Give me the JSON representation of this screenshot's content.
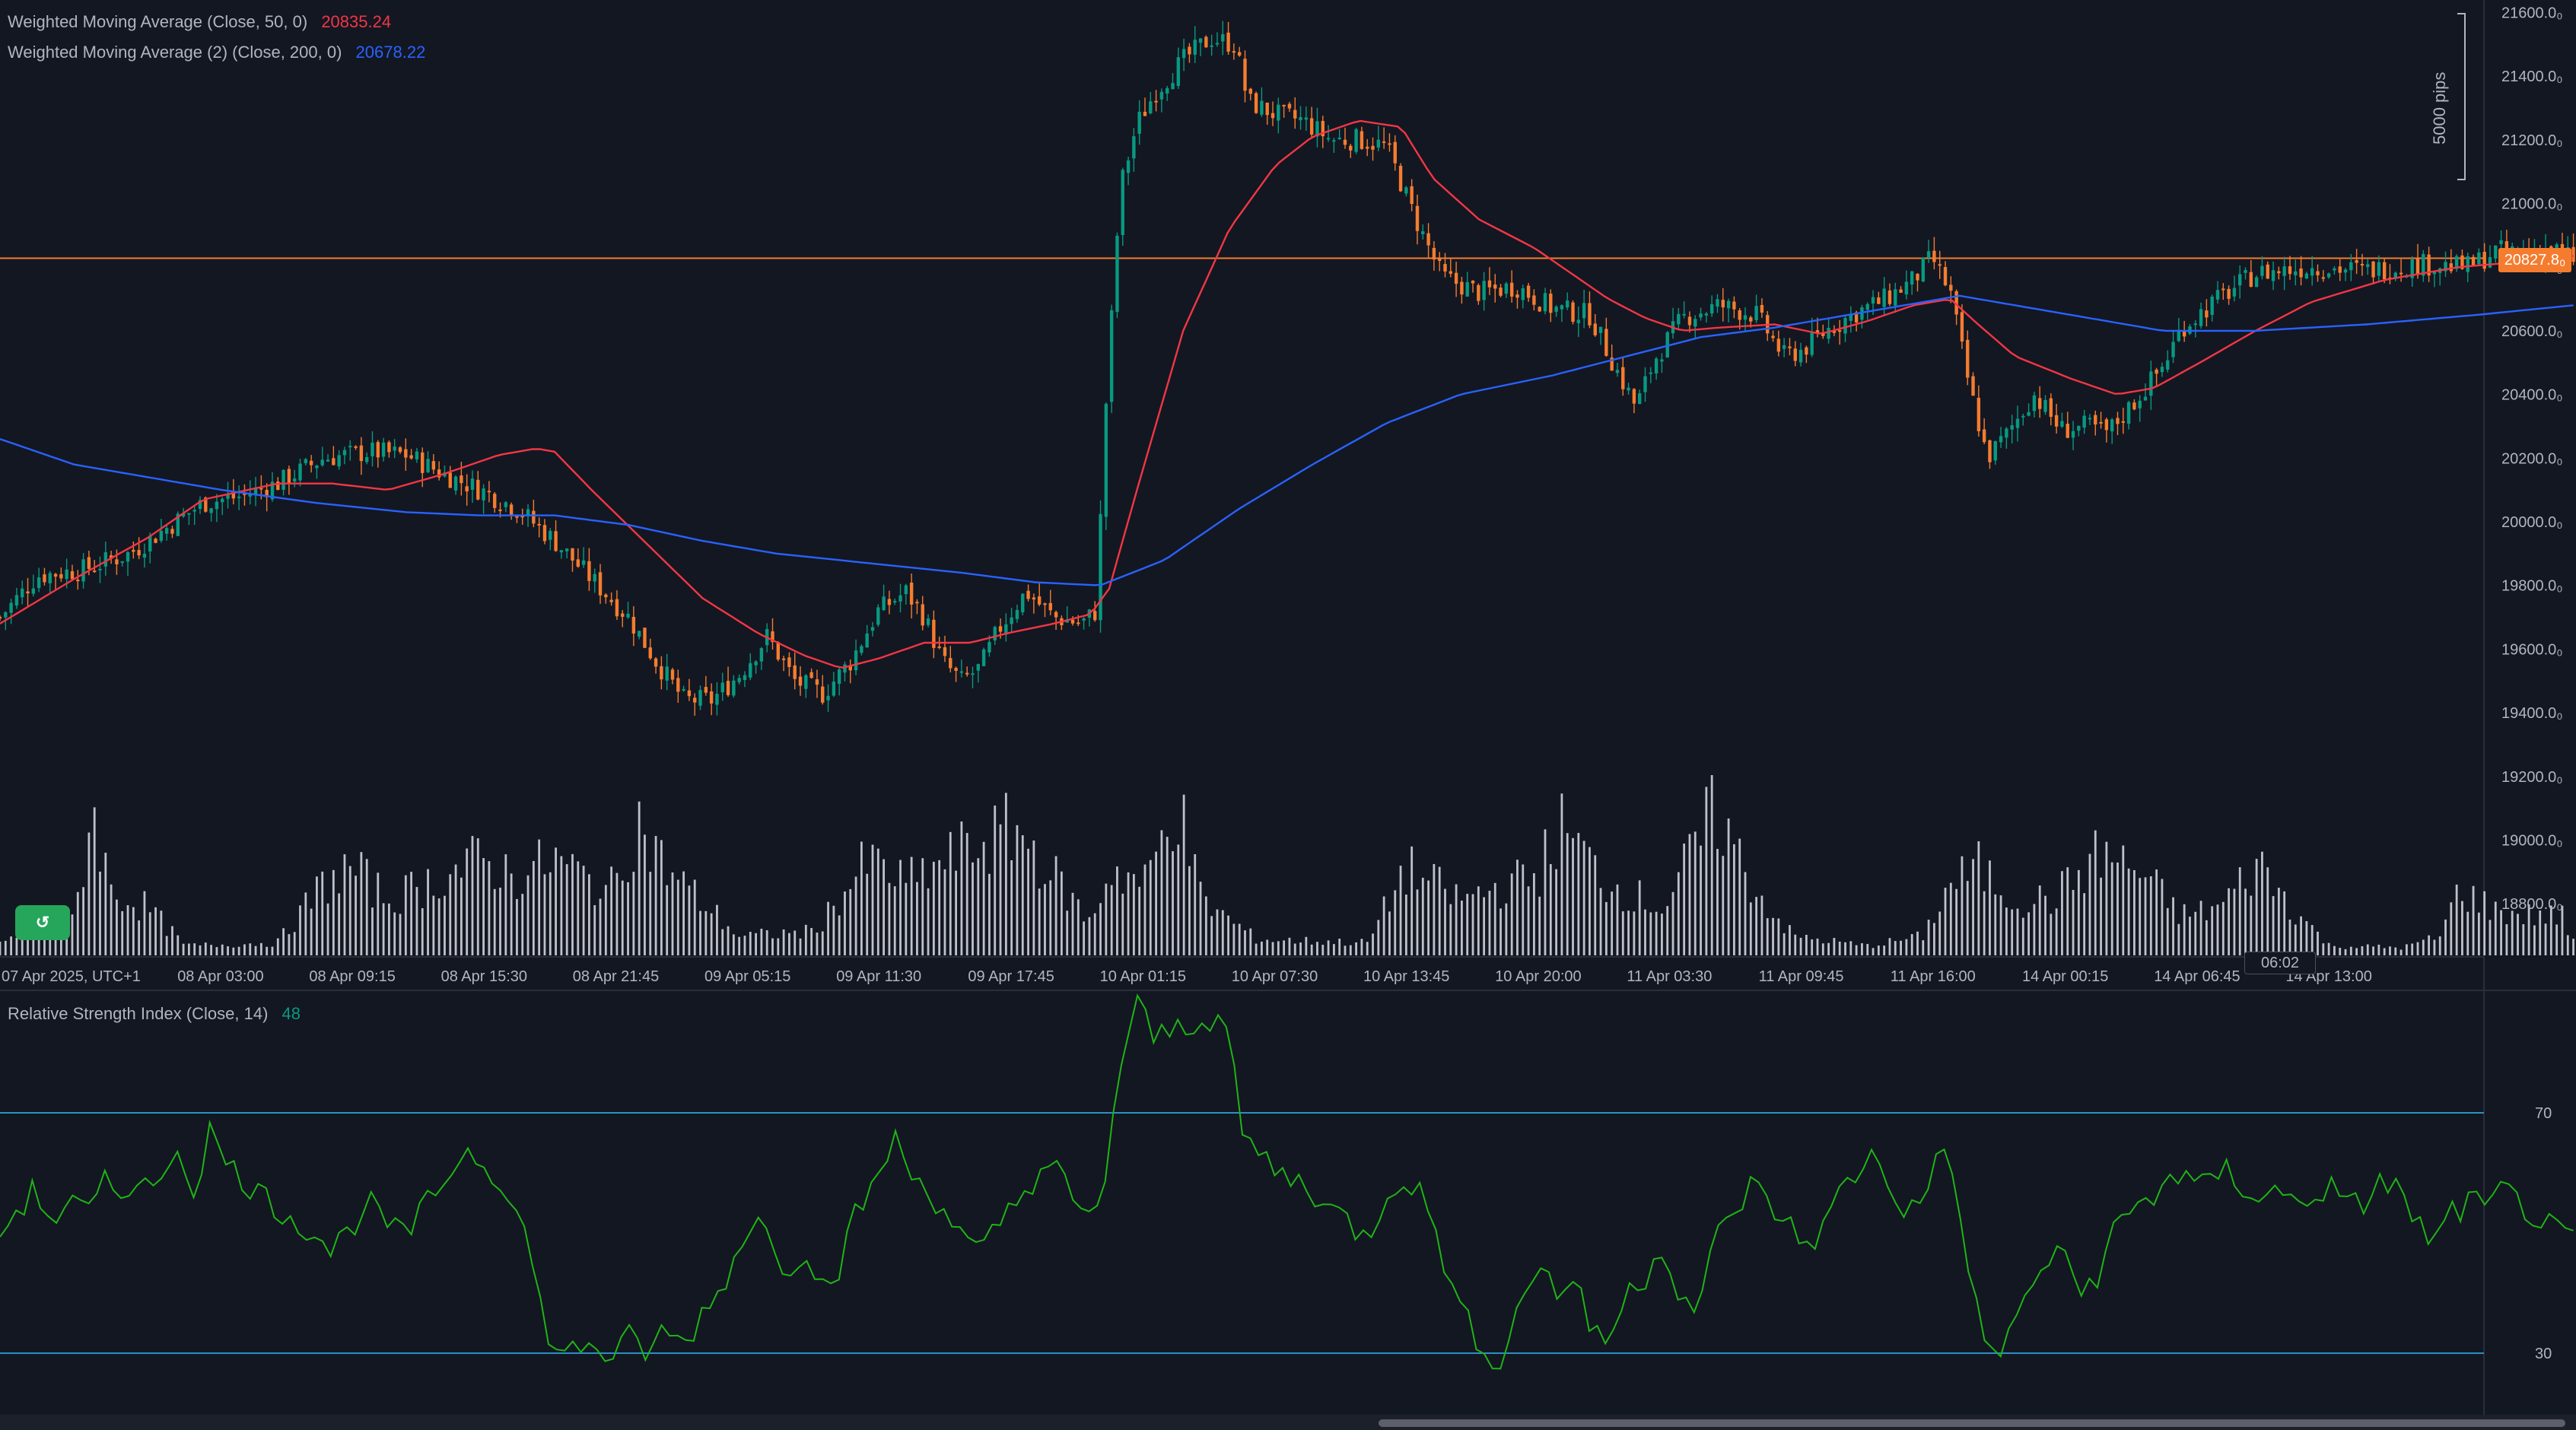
{
  "legend": {
    "wma50": {
      "label": "Weighted Moving Average (Close, 50, 0)",
      "value": "20835.24",
      "color": "#f23645"
    },
    "wma200": {
      "label": "Weighted Moving Average (2) (Close, 200, 0)",
      "value": "20678.22",
      "color": "#2962ff"
    },
    "rsi": {
      "label": "Relative Strength Index (Close, 14)",
      "value": "48",
      "color": "#089981"
    }
  },
  "price_badge": "20827.8₀",
  "countdown": "06:02",
  "range_measure": "5000 pips",
  "colors": {
    "background": "#131722",
    "up": "#089981",
    "down": "#f57c2f",
    "wma50": "#f23645",
    "wma200": "#2962ff",
    "rsi": "#1fb416",
    "rsi_band": "#2a8fc9",
    "price_line": "#f57c2f",
    "volume": "#d1d4dc"
  },
  "chart_data": [
    {
      "type": "candlestick",
      "title": "",
      "y_axis_ticks": [
        "21600.0₀",
        "21400.0₀",
        "21200.0₀",
        "21000.0₀",
        "20800.0₀",
        "20600.0₀",
        "20400.0₀",
        "20200.0₀",
        "20000.0₀",
        "19800.0₀",
        "19600.0₀",
        "19400.0₀",
        "19200.0₀",
        "19000.0₀",
        "18800.0₀"
      ],
      "y_tick_values": [
        21600,
        21400,
        21200,
        21000,
        20800,
        20600,
        20400,
        20200,
        20000,
        19800,
        19600,
        19400,
        19200,
        19000,
        18800
      ],
      "ylim": [
        18700,
        21620
      ],
      "x_axis_ticks": [
        "07 Apr 2025, UTC+1",
        "08 Apr 03:00",
        "08 Apr 09:15",
        "08 Apr 15:30",
        "08 Apr 21:45",
        "09 Apr 05:15",
        "09 Apr 11:30",
        "09 Apr 17:45",
        "10 Apr 01:15",
        "10 Apr 07:30",
        "10 Apr 13:45",
        "10 Apr 20:00",
        "11 Apr 03:30",
        "11 Apr 09:45",
        "11 Apr 16:00",
        "14 Apr 00:15",
        "14 Apr 06:45",
        "14 Apr 13:00"
      ],
      "current_price": 20827.8,
      "close_path": [
        [
          0,
          19700
        ],
        [
          20,
          19830
        ],
        [
          45,
          19850
        ],
        [
          70,
          19900
        ],
        [
          90,
          19980
        ],
        [
          110,
          20060
        ],
        [
          130,
          20080
        ],
        [
          150,
          20120
        ],
        [
          175,
          20200
        ],
        [
          200,
          20220
        ],
        [
          220,
          20210
        ],
        [
          240,
          20150
        ],
        [
          260,
          20100
        ],
        [
          280,
          20040
        ],
        [
          300,
          19940
        ],
        [
          320,
          19820
        ],
        [
          340,
          19700
        ],
        [
          355,
          19560
        ],
        [
          370,
          19440
        ],
        [
          385,
          19440
        ],
        [
          400,
          19520
        ],
        [
          415,
          19640
        ],
        [
          430,
          19500
        ],
        [
          445,
          19460
        ],
        [
          460,
          19560
        ],
        [
          475,
          19720
        ],
        [
          490,
          19780
        ],
        [
          500,
          19700
        ],
        [
          510,
          19560
        ],
        [
          520,
          19500
        ],
        [
          530,
          19540
        ],
        [
          540,
          19660
        ],
        [
          555,
          19780
        ],
        [
          570,
          19700
        ],
        [
          585,
          19680
        ],
        [
          593,
          19720
        ],
        [
          598,
          20350
        ],
        [
          606,
          21050
        ],
        [
          615,
          21250
        ],
        [
          625,
          21350
        ],
        [
          640,
          21450
        ],
        [
          655,
          21520
        ],
        [
          668,
          21500
        ],
        [
          675,
          21320
        ],
        [
          690,
          21280
        ],
        [
          705,
          21260
        ],
        [
          720,
          21200
        ],
        [
          735,
          21200
        ],
        [
          750,
          21180
        ],
        [
          765,
          20960
        ],
        [
          780,
          20770
        ],
        [
          800,
          20720
        ],
        [
          820,
          20740
        ],
        [
          840,
          20670
        ],
        [
          860,
          20650
        ],
        [
          875,
          20470
        ],
        [
          885,
          20360
        ],
        [
          895,
          20510
        ],
        [
          910,
          20640
        ],
        [
          930,
          20680
        ],
        [
          950,
          20650
        ],
        [
          965,
          20520
        ],
        [
          975,
          20540
        ],
        [
          990,
          20610
        ],
        [
          1005,
          20660
        ],
        [
          1020,
          20700
        ],
        [
          1035,
          20760
        ],
        [
          1045,
          20830
        ],
        [
          1055,
          20720
        ],
        [
          1065,
          20430
        ],
        [
          1075,
          20200
        ],
        [
          1085,
          20270
        ],
        [
          1100,
          20400
        ],
        [
          1115,
          20290
        ],
        [
          1130,
          20300
        ],
        [
          1140,
          20280
        ],
        [
          1155,
          20380
        ],
        [
          1170,
          20490
        ],
        [
          1180,
          20610
        ],
        [
          1200,
          20700
        ],
        [
          1220,
          20780
        ],
        [
          1250,
          20800
        ],
        [
          1280,
          20790
        ],
        [
          1310,
          20810
        ],
        [
          1335,
          20800
        ],
        [
          1350,
          20850
        ],
        [
          1365,
          20850
        ],
        [
          1380,
          20860
        ],
        [
          1392,
          20828
        ]
      ],
      "series": [
        {
          "name": "Weighted Moving Average (Close, 50, 0)",
          "last_value": 20835.24,
          "path": [
            [
              0,
              19680
            ],
            [
              40,
              19820
            ],
            [
              80,
              19950
            ],
            [
              110,
              20070
            ],
            [
              150,
              20120
            ],
            [
              180,
              20120
            ],
            [
              210,
              20100
            ],
            [
              240,
              20150
            ],
            [
              270,
              20210
            ],
            [
              290,
              20230
            ],
            [
              300,
              20220
            ],
            [
              320,
              20100
            ],
            [
              350,
              19930
            ],
            [
              380,
              19760
            ],
            [
              410,
              19650
            ],
            [
              435,
              19580
            ],
            [
              455,
              19540
            ],
            [
              475,
              19570
            ],
            [
              500,
              19620
            ],
            [
              525,
              19620
            ],
            [
              545,
              19650
            ],
            [
              570,
              19680
            ],
            [
              590,
              19710
            ],
            [
              600,
              19790
            ],
            [
              615,
              20100
            ],
            [
              640,
              20600
            ],
            [
              665,
              20920
            ],
            [
              690,
              21120
            ],
            [
              710,
              21210
            ],
            [
              735,
              21260
            ],
            [
              758,
              21240
            ],
            [
              775,
              21080
            ],
            [
              800,
              20950
            ],
            [
              830,
              20860
            ],
            [
              850,
              20780
            ],
            [
              870,
              20700
            ],
            [
              890,
              20640
            ],
            [
              910,
              20600
            ],
            [
              930,
              20610
            ],
            [
              960,
              20620
            ],
            [
              985,
              20590
            ],
            [
              1010,
              20630
            ],
            [
              1035,
              20680
            ],
            [
              1055,
              20700
            ],
            [
              1070,
              20620
            ],
            [
              1090,
              20520
            ],
            [
              1120,
              20450
            ],
            [
              1145,
              20400
            ],
            [
              1165,
              20420
            ],
            [
              1190,
              20500
            ],
            [
              1220,
              20600
            ],
            [
              1250,
              20690
            ],
            [
              1290,
              20760
            ],
            [
              1330,
              20800
            ],
            [
              1370,
              20820
            ],
            [
              1392,
              20835
            ]
          ]
        },
        {
          "name": "Weighted Moving Average (2) (Close, 200, 0)",
          "last_value": 20678.22,
          "path": [
            [
              0,
              20260
            ],
            [
              40,
              20180
            ],
            [
              80,
              20140
            ],
            [
              120,
              20100
            ],
            [
              170,
              20060
            ],
            [
              220,
              20030
            ],
            [
              260,
              20020
            ],
            [
              300,
              20020
            ],
            [
              340,
              19990
            ],
            [
              380,
              19940
            ],
            [
              420,
              19900
            ],
            [
              470,
              19870
            ],
            [
              520,
              19840
            ],
            [
              560,
              19810
            ],
            [
              595,
              19800
            ],
            [
              630,
              19880
            ],
            [
              670,
              20040
            ],
            [
              710,
              20180
            ],
            [
              750,
              20310
            ],
            [
              790,
              20400
            ],
            [
              840,
              20460
            ],
            [
              880,
              20520
            ],
            [
              920,
              20580
            ],
            [
              960,
              20610
            ],
            [
              1000,
              20650
            ],
            [
              1040,
              20690
            ],
            [
              1060,
              20710
            ],
            [
              1100,
              20670
            ],
            [
              1140,
              20630
            ],
            [
              1170,
              20600
            ],
            [
              1220,
              20600
            ],
            [
              1280,
              20620
            ],
            [
              1340,
              20650
            ],
            [
              1392,
              20680
            ]
          ]
        }
      ]
    },
    {
      "type": "bar",
      "title": "",
      "note": "volume histogram under price",
      "levels": [
        [
          0,
          0.08
        ],
        [
          40,
          0.22
        ],
        [
          50,
          0.95
        ],
        [
          60,
          0.4
        ],
        [
          80,
          0.3
        ],
        [
          100,
          0.06
        ],
        [
          150,
          0.08
        ],
        [
          175,
          0.45
        ],
        [
          190,
          0.55
        ],
        [
          210,
          0.35
        ],
        [
          260,
          0.6
        ],
        [
          280,
          0.5
        ],
        [
          300,
          0.6
        ],
        [
          330,
          0.4
        ],
        [
          345,
          0.85
        ],
        [
          360,
          0.55
        ],
        [
          400,
          0.12
        ],
        [
          440,
          0.15
        ],
        [
          470,
          0.6
        ],
        [
          490,
          0.45
        ],
        [
          520,
          0.65
        ],
        [
          550,
          0.8
        ],
        [
          570,
          0.5
        ],
        [
          590,
          0.2
        ],
        [
          600,
          0.55
        ],
        [
          620,
          0.45
        ],
        [
          636,
          1.0
        ],
        [
          650,
          0.35
        ],
        [
          680,
          0.1
        ],
        [
          740,
          0.08
        ],
        [
          760,
          0.55
        ],
        [
          790,
          0.35
        ],
        [
          830,
          0.5
        ],
        [
          845,
          0.8
        ],
        [
          870,
          0.45
        ],
        [
          900,
          0.3
        ],
        [
          928,
          0.92
        ],
        [
          950,
          0.4
        ],
        [
          970,
          0.12
        ],
        [
          1010,
          0.06
        ],
        [
          1040,
          0.12
        ],
        [
          1055,
          0.45
        ],
        [
          1070,
          0.55
        ],
        [
          1090,
          0.35
        ],
        [
          1110,
          0.35
        ],
        [
          1137,
          0.65
        ],
        [
          1160,
          0.5
        ],
        [
          1180,
          0.25
        ],
        [
          1200,
          0.3
        ],
        [
          1222,
          0.58
        ],
        [
          1240,
          0.3
        ],
        [
          1260,
          0.06
        ],
        [
          1300,
          0.05
        ],
        [
          1320,
          0.12
        ],
        [
          1330,
          0.42
        ],
        [
          1350,
          0.28
        ],
        [
          1370,
          0.25
        ],
        [
          1386,
          0.25
        ],
        [
          1392,
          0.08
        ]
      ]
    },
    {
      "type": "line",
      "title": "",
      "xlabel": "",
      "ylabel": "",
      "y_axis_ticks": [
        "70",
        "30"
      ],
      "y_tick_values": [
        70,
        30
      ],
      "ylim": [
        20,
        90
      ],
      "series": [
        {
          "name": "Relative Strength Index (Close, 14)",
          "last_value": 48,
          "values": [
            50,
            54,
            57,
            52,
            55,
            53,
            58,
            56,
            61,
            55,
            66,
            57,
            67,
            61,
            59,
            56,
            54,
            52,
            50,
            47,
            51,
            55,
            52,
            49,
            53,
            57,
            62,
            64,
            60,
            58,
            50,
            36,
            29,
            31,
            32,
            28,
            33,
            30,
            34,
            31,
            36,
            40,
            46,
            53,
            49,
            44,
            48,
            41,
            45,
            54,
            58,
            66,
            60,
            57,
            54,
            49,
            46,
            51,
            55,
            59,
            62,
            57,
            51,
            57,
            78,
            88,
            82,
            84,
            85,
            86,
            85,
            66,
            63,
            60,
            59,
            57,
            54,
            52,
            49,
            55,
            60,
            57,
            51,
            40,
            34,
            30,
            29,
            41,
            45,
            39,
            44,
            32,
            33,
            40,
            43,
            48,
            40,
            37,
            49,
            53,
            58,
            55,
            52,
            48,
            50,
            56,
            60,
            63,
            58,
            53,
            56,
            67,
            50,
            37,
            28,
            34,
            42,
            45,
            46,
            40,
            44,
            52,
            54,
            56,
            60,
            59,
            57,
            61,
            58,
            56,
            57,
            55,
            56,
            58,
            54,
            55,
            59,
            57,
            52,
            48,
            53,
            55,
            54,
            57,
            55,
            52,
            50,
            48
          ]
        }
      ],
      "bands": [
        70,
        30
      ]
    }
  ]
}
